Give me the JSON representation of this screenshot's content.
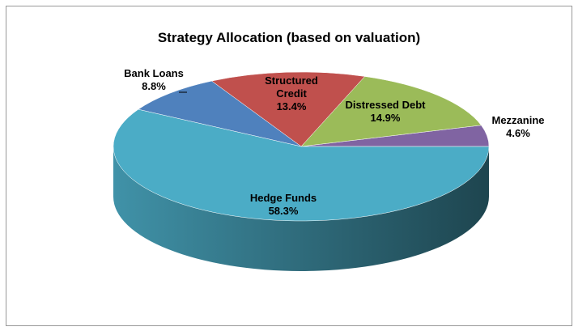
{
  "chart_data": {
    "type": "pie3d",
    "title": "Strategy Allocation (based on valuation)",
    "categories": [
      "Mezzanine",
      "Distressed Debt",
      "Structured Credit",
      "Bank Loans",
      "Hedge Funds"
    ],
    "values": [
      4.6,
      14.9,
      13.4,
      8.8,
      58.3
    ],
    "value_labels": [
      "4.6%",
      "14.9%",
      "13.4%",
      "8.8%",
      "58.3%"
    ],
    "colors": [
      "#8064a2",
      "#9bbb59",
      "#c0504d",
      "#4f81bd",
      "#4bacc6"
    ]
  }
}
